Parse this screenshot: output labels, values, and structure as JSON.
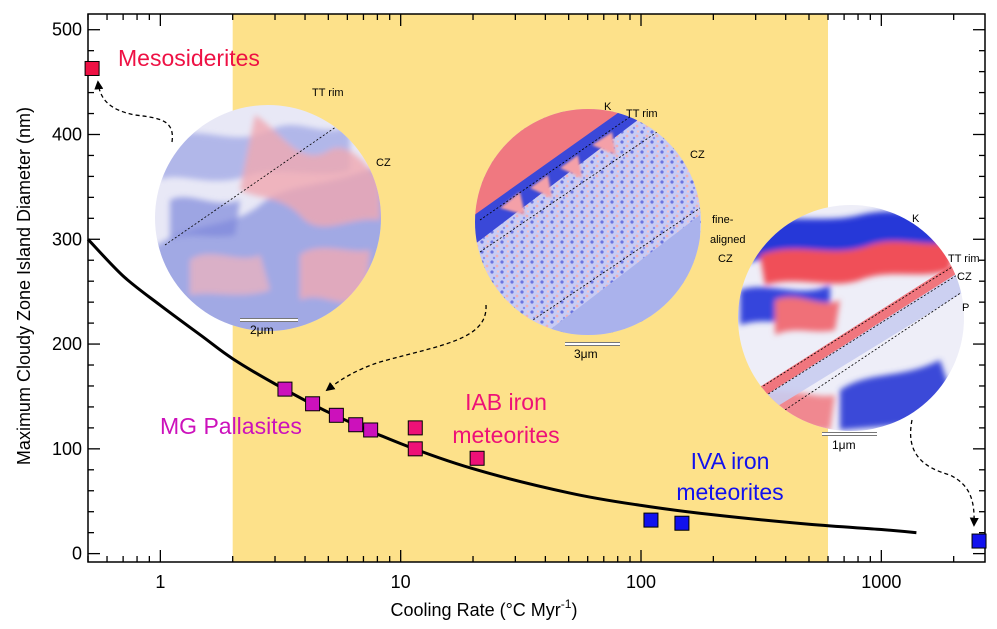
{
  "chart_data": {
    "type": "scatter",
    "xscale": "log",
    "xlim": [
      0.5,
      2700
    ],
    "ylim": [
      -8,
      515
    ],
    "xlabel": "Cooling Rate (°C Myr",
    "xlabel_sup": "-1",
    "xlabel_close": ")",
    "ylabel": "Maximum Cloudy Zone Island Diameter (nm)",
    "x_ticks": [
      {
        "value": 1,
        "label": "1"
      },
      {
        "value": 10,
        "label": "10"
      },
      {
        "value": 100,
        "label": "100"
      },
      {
        "value": 1000,
        "label": "1000"
      }
    ],
    "y_ticks": [
      {
        "value": 0,
        "label": "0"
      },
      {
        "value": 100,
        "label": "100"
      },
      {
        "value": 200,
        "label": "200"
      },
      {
        "value": 300,
        "label": "300"
      },
      {
        "value": 400,
        "label": "400"
      },
      {
        "value": 500,
        "label": "500"
      }
    ],
    "highlight_band": {
      "x_from": 2,
      "x_to": 600,
      "color": "#fde18a"
    },
    "fit_curve": {
      "color": "#000000",
      "points": [
        [
          0.5,
          300
        ],
        [
          0.7,
          265
        ],
        [
          1.0,
          237
        ],
        [
          1.5,
          207
        ],
        [
          2.0,
          186
        ],
        [
          3.0,
          162
        ],
        [
          5.0,
          135
        ],
        [
          10,
          105
        ],
        [
          20,
          81
        ],
        [
          50,
          58
        ],
        [
          100,
          46
        ],
        [
          200,
          37
        ],
        [
          500,
          28
        ],
        [
          1000,
          23
        ],
        [
          1400,
          20
        ]
      ]
    },
    "series": [
      {
        "group": "mesosiderites",
        "color": "#ee1144",
        "points": [
          [
            0.52,
            463
          ]
        ]
      },
      {
        "group": "pallasites",
        "color": "#cc11bb",
        "points": [
          [
            3.3,
            157
          ],
          [
            4.3,
            143
          ],
          [
            5.4,
            132
          ],
          [
            6.5,
            123
          ],
          [
            7.5,
            118
          ]
        ]
      },
      {
        "group": "iab",
        "color": "#ee1177",
        "points": [
          [
            11.5,
            120
          ],
          [
            11.5,
            100
          ],
          [
            20.8,
            91
          ]
        ]
      },
      {
        "group": "iva",
        "color": "#1111ee",
        "points": [
          [
            110,
            32
          ],
          [
            148,
            29
          ],
          [
            2550,
            12
          ]
        ]
      }
    ],
    "group_labels": [
      {
        "id": "mesosiderites",
        "lines": [
          "Mesosiderites"
        ],
        "color": "#ee1144"
      },
      {
        "id": "pallasites",
        "lines": [
          "MG Pallasites"
        ],
        "color": "#cc11bb"
      },
      {
        "id": "iab",
        "lines": [
          "IAB iron",
          "meteorites"
        ],
        "color": "#ee1177"
      },
      {
        "id": "iva",
        "lines": [
          "IVA iron",
          "meteorites"
        ],
        "color": "#1111ee"
      }
    ],
    "insets": [
      {
        "id": "inset-mesosiderite",
        "labels": [
          "TT rim",
          "CZ"
        ],
        "scale_bar": "2μm"
      },
      {
        "id": "inset-pallasite",
        "labels": [
          "K",
          "TT rim",
          "CZ",
          "fine-",
          "aligned",
          "CZ"
        ],
        "scale_bar": "3μm"
      },
      {
        "id": "inset-iva",
        "labels": [
          "K",
          "TT rim",
          "CZ",
          "P"
        ],
        "scale_bar": "1μm"
      }
    ]
  }
}
